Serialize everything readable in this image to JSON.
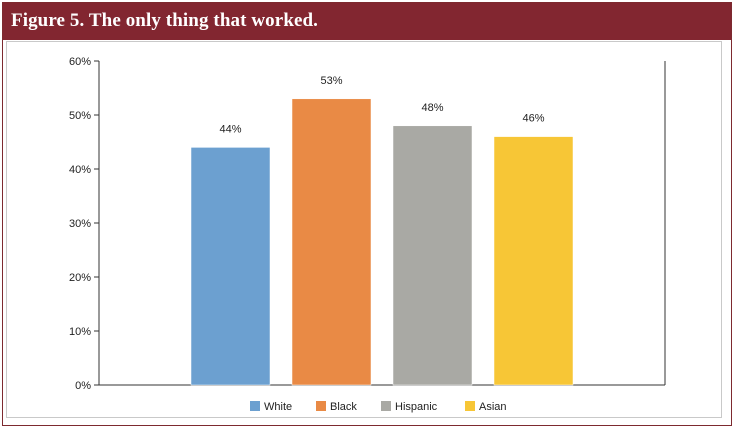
{
  "header": {
    "title": "Figure 5. The only thing that worked."
  },
  "chart_data": {
    "type": "bar",
    "title": "Figure 5. The only thing that worked.",
    "categories": [
      "White",
      "Black",
      "Hispanic",
      "Asian"
    ],
    "values": [
      44,
      53,
      48,
      46
    ],
    "data_labels": [
      "44%",
      "53%",
      "48%",
      "46%"
    ],
    "colors": [
      "#6ca0d0",
      "#e98a45",
      "#a9a9a4",
      "#f7c636"
    ],
    "xlabel": "",
    "ylabel": "",
    "ylim": [
      0,
      60
    ],
    "yticks": [
      0,
      10,
      20,
      30,
      40,
      50,
      60
    ],
    "ytick_labels": [
      "0%",
      "10%",
      "20%",
      "30%",
      "40%",
      "50%",
      "60%"
    ],
    "grid": false,
    "legend": {
      "placement": "bottom",
      "entries": [
        "White",
        "Black",
        "Hispanic",
        "Asian"
      ]
    }
  }
}
